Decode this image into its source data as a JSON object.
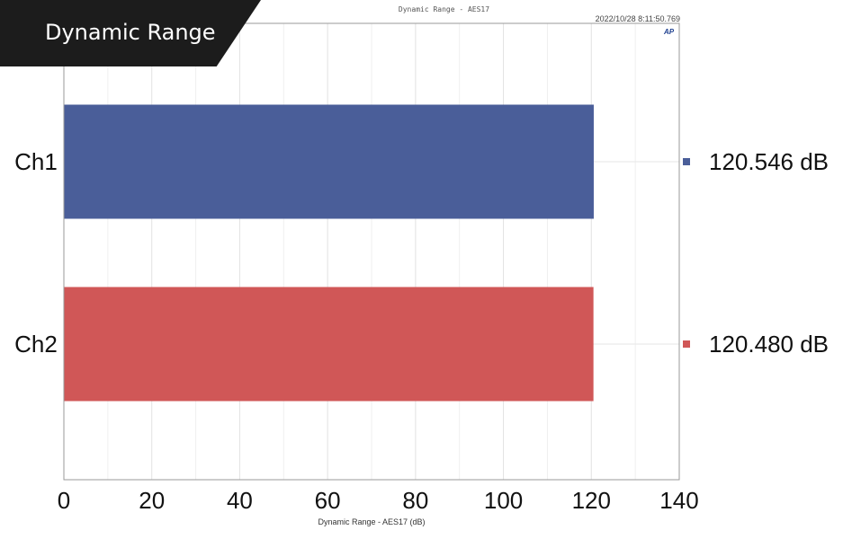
{
  "banner": {
    "label": "Dynamic Range"
  },
  "header": {
    "graph_title": "Dynamic Range - AES17",
    "timestamp": "2022/10/28 8:11:50.769",
    "logo": "AP"
  },
  "chart_data": {
    "type": "bar",
    "orientation": "horizontal",
    "title": "Dynamic Range - AES17",
    "xlabel": "Dynamic Range - AES17 (dB)",
    "ylabel": "",
    "categories": [
      "Ch1",
      "Ch2"
    ],
    "values": [
      120.546,
      120.48
    ],
    "value_labels": [
      "120.546 dB",
      "120.480 dB"
    ],
    "colors": [
      "#4a5e99",
      "#d05757"
    ],
    "xlim": [
      0,
      140
    ],
    "xticks": [
      "0",
      "20",
      "40",
      "60",
      "80",
      "100",
      "120",
      "140"
    ],
    "grid": true,
    "legend": "right"
  }
}
